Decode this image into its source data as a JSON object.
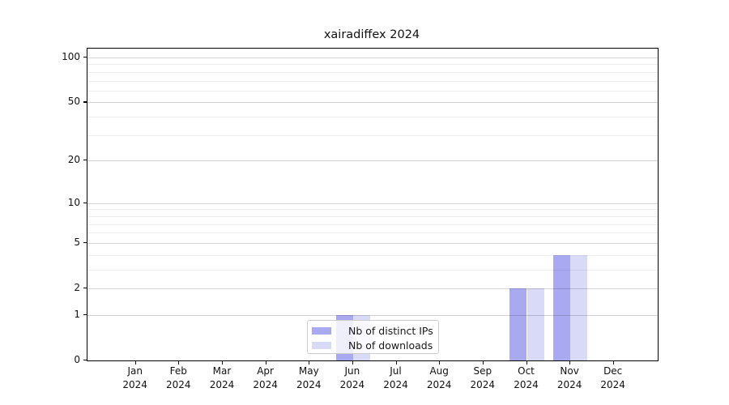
{
  "figure": {
    "title": "xairadiffex 2024"
  },
  "chart_data": {
    "type": "bar",
    "title": "xairadiffex 2024",
    "categories": [
      "Jan",
      "Feb",
      "Mar",
      "Apr",
      "May",
      "Jun",
      "Jul",
      "Aug",
      "Sep",
      "Oct",
      "Nov",
      "Dec"
    ],
    "x_year": "2024",
    "series": [
      {
        "name": "Nb of distinct IPs",
        "color": "#a9a9f2",
        "values": [
          0,
          0,
          0,
          0,
          0,
          1,
          0,
          0,
          0,
          2,
          4,
          0
        ]
      },
      {
        "name": "Nb of downloads",
        "color": "#d9d9f8",
        "values": [
          0,
          0,
          0,
          0,
          0,
          1,
          0,
          0,
          0,
          2,
          4,
          0
        ]
      }
    ],
    "xlabel": "",
    "ylabel": "",
    "y_axis": {
      "scale": "log(1+v)",
      "tick_labels": [
        100,
        50,
        20,
        10,
        5,
        2,
        1,
        0
      ],
      "minor_gridlines": [
        90,
        80,
        70,
        60,
        40,
        30,
        9,
        8,
        7,
        6,
        4,
        3
      ],
      "ylim": [
        0,
        115
      ]
    },
    "grid": "on",
    "legend_position": "lower center"
  },
  "colors": {
    "major_grid": "rgba(0,0,0,0.17)",
    "minor_grid": "rgba(0,0,0,0.065)",
    "spine": "#000000",
    "background": "#ffffff"
  }
}
